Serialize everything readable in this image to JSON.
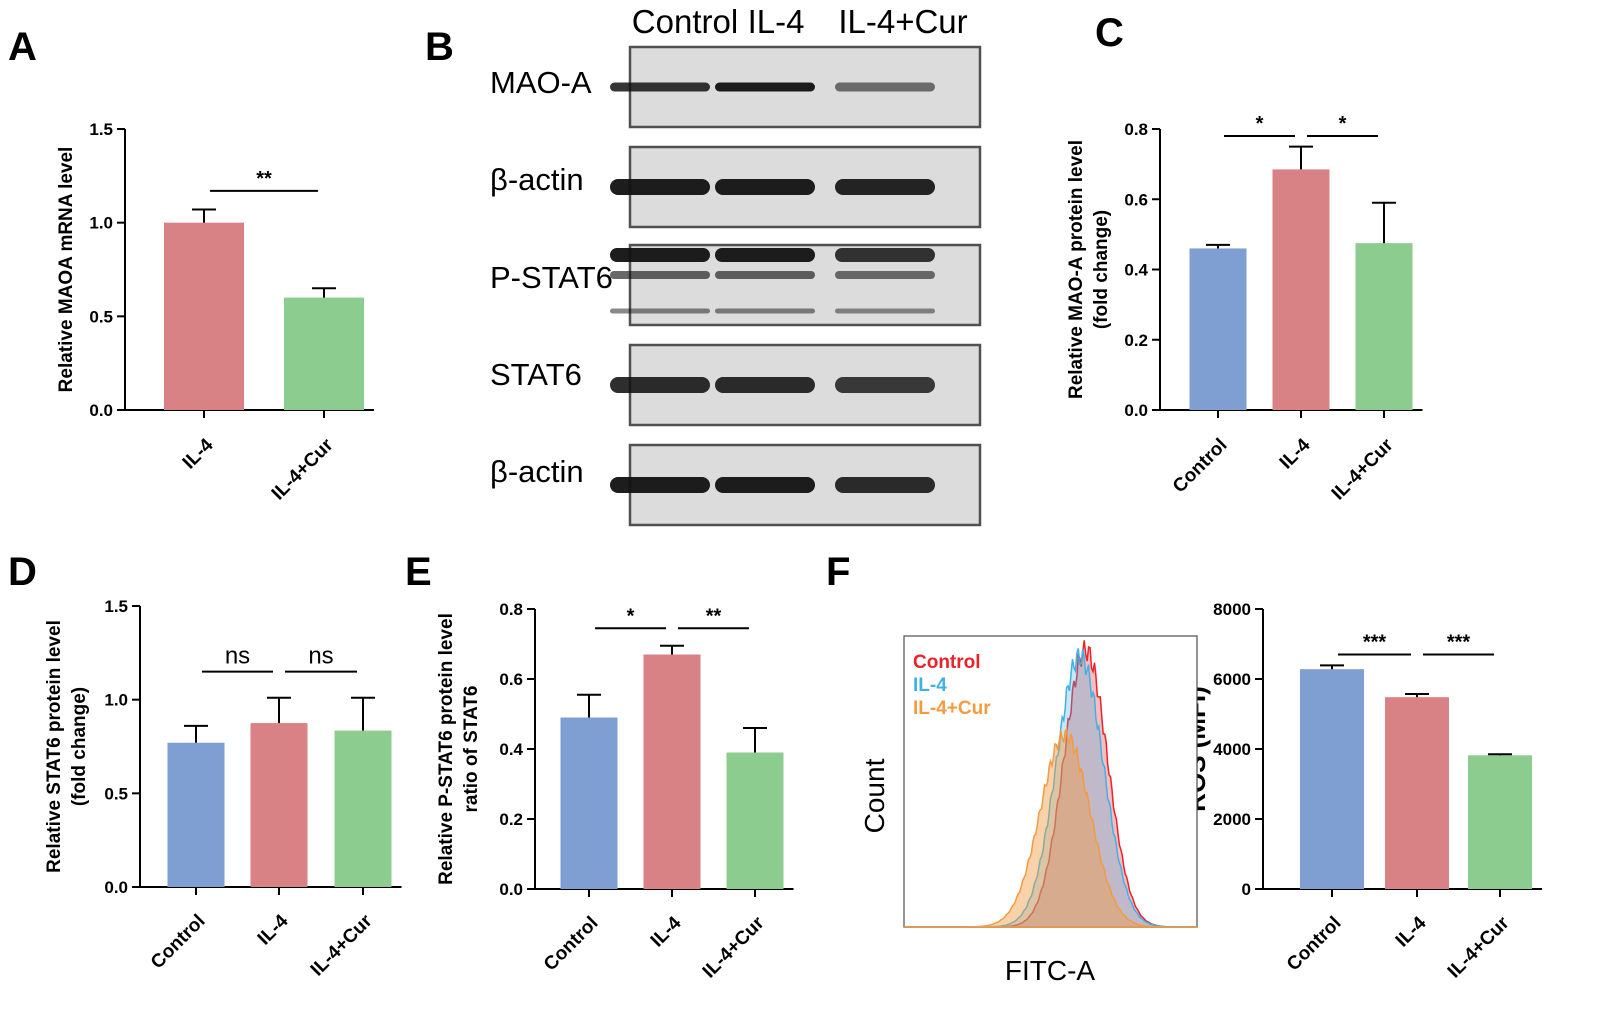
{
  "panel_labels": [
    "A",
    "B",
    "C",
    "D",
    "E",
    "F"
  ],
  "colors": {
    "Control": "#7f9fd3",
    "IL-4": "#d98285",
    "IL-4+Cur": "#8ccc8e",
    "hist_control": "#e8232a",
    "hist_il4": "#3fb1e6",
    "hist_il4cur": "#f39b42"
  },
  "chart_data": [
    {
      "id": "A",
      "type": "bar",
      "categories": [
        "IL-4",
        "IL-4+Cur"
      ],
      "values": [
        1.0,
        0.6
      ],
      "errors": [
        0.07,
        0.05
      ],
      "ylabel": "Relative MAOA mRNA level",
      "ylim": [
        0,
        1.5
      ],
      "yticks": [
        0.0,
        0.5,
        1.0,
        1.5
      ],
      "yticklabels": [
        "0.0",
        "0.5",
        "1.0",
        "1.5"
      ],
      "significance": [
        {
          "from": 0,
          "to": 1,
          "label": "**",
          "y": 1.17
        }
      ]
    },
    {
      "id": "C",
      "type": "bar",
      "categories": [
        "Control",
        "IL-4",
        "IL-4+Cur"
      ],
      "values": [
        0.46,
        0.685,
        0.475
      ],
      "errors": [
        0.01,
        0.065,
        0.115
      ],
      "ylabel": "Relative MAO-A protein level",
      "ylabel2": "(fold change)",
      "ylim": [
        0,
        0.8
      ],
      "yticks": [
        0.0,
        0.2,
        0.4,
        0.6,
        0.8
      ],
      "yticklabels": [
        "0.0",
        "0.2",
        "0.4",
        "0.6",
        "0.8"
      ],
      "significance": [
        {
          "from": 0,
          "to": 1,
          "label": "*",
          "y": 0.78
        },
        {
          "from": 1,
          "to": 2,
          "label": "*",
          "y": 0.78
        }
      ]
    },
    {
      "id": "D",
      "type": "bar",
      "categories": [
        "Control",
        "IL-4",
        "IL-4+Cur"
      ],
      "values": [
        0.77,
        0.875,
        0.835
      ],
      "errors": [
        0.09,
        0.135,
        0.175
      ],
      "ylabel": "Relative STAT6 protein level",
      "ylabel2": "(fold change)",
      "ylim": [
        0,
        1.5
      ],
      "yticks": [
        0.0,
        0.5,
        1.0,
        1.5
      ],
      "yticklabels": [
        "0.0",
        "0.5",
        "1.0",
        "1.5"
      ],
      "significance": [
        {
          "from": 0,
          "to": 1,
          "label": "ns",
          "y": 1.15
        },
        {
          "from": 1,
          "to": 2,
          "label": "ns",
          "y": 1.15
        }
      ]
    },
    {
      "id": "E",
      "type": "bar",
      "categories": [
        "Control",
        "IL-4",
        "IL-4+Cur"
      ],
      "values": [
        0.49,
        0.67,
        0.39
      ],
      "errors": [
        0.065,
        0.025,
        0.07
      ],
      "ylabel": "Relative P-STAT6 protein level",
      "ylabel2": "ratio of STAT6",
      "ylim": [
        0,
        0.8
      ],
      "yticks": [
        0.0,
        0.2,
        0.4,
        0.6,
        0.8
      ],
      "yticklabels": [
        "0.0",
        "0.2",
        "0.4",
        "0.6",
        "0.8"
      ],
      "significance": [
        {
          "from": 0,
          "to": 1,
          "label": "*",
          "y": 0.745
        },
        {
          "from": 1,
          "to": 2,
          "label": "**",
          "y": 0.745
        }
      ]
    },
    {
      "id": "F2",
      "type": "bar",
      "categories": [
        "Control",
        "IL-4",
        "IL-4+Cur"
      ],
      "values": [
        6280,
        5480,
        3820
      ],
      "errors": [
        110,
        90,
        30
      ],
      "ylabel": "ROS (MFI)",
      "ylim": [
        0,
        8000
      ],
      "yticks": [
        0,
        2000,
        4000,
        6000,
        8000
      ],
      "yticklabels": [
        "0",
        "2000",
        "4000",
        "6000",
        "8000"
      ],
      "significance": [
        {
          "from": 0,
          "to": 1,
          "label": "***",
          "y": 6700
        },
        {
          "from": 1,
          "to": 2,
          "label": "***",
          "y": 6700
        }
      ]
    }
  ],
  "western_blot": {
    "lanes": [
      "Control",
      "IL-4",
      "IL-4+Cur"
    ],
    "rows": [
      {
        "label": "MAO-A",
        "band_intensity": [
          0.85,
          1.0,
          0.45
        ]
      },
      {
        "label": "β-actin",
        "band_intensity": [
          1.0,
          1.0,
          0.95
        ]
      },
      {
        "label": "P-STAT6",
        "band_intensity": [
          1.0,
          1.0,
          0.85
        ]
      },
      {
        "label": "STAT6",
        "band_intensity": [
          0.9,
          0.9,
          0.8
        ]
      },
      {
        "label": "β-actin",
        "band_intensity": [
          1.0,
          1.0,
          0.9
        ]
      }
    ]
  },
  "flow_histogram": {
    "xlabel": "FITC-A",
    "ylabel": "Count",
    "legend": [
      "Control",
      "IL-4",
      "IL-4+Cur"
    ],
    "peak_position": [
      0.62,
      0.6,
      0.55
    ]
  }
}
